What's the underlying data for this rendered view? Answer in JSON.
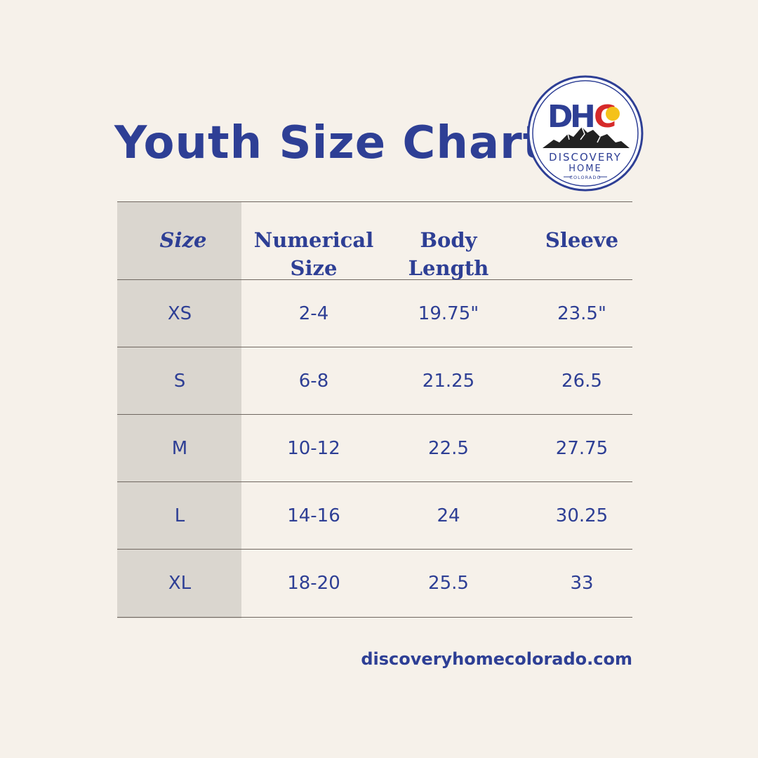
{
  "title": "Youth Size Chart",
  "logo": {
    "letters": [
      "D",
      "H",
      "C"
    ],
    "line1": "DISCOVERY",
    "line2": "HOME",
    "line3": "COLORADO",
    "colors": {
      "navy": "#2e3f95",
      "red": "#d62a2a",
      "gold": "#f4c21a",
      "mountain": "#222222"
    }
  },
  "table": {
    "headers": [
      {
        "lines": [
          "Size"
        ]
      },
      {
        "lines": [
          "Numerical",
          "Size"
        ]
      },
      {
        "lines": [
          "Body",
          "Length"
        ]
      },
      {
        "lines": [
          "Sleeve"
        ]
      }
    ],
    "rows": [
      [
        "XS",
        "2-4",
        "19.75\"",
        "23.5\""
      ],
      [
        "S",
        "6-8",
        "21.25",
        "26.5"
      ],
      [
        "M",
        "10-12",
        "22.5",
        "27.75"
      ],
      [
        "L",
        "14-16",
        "24",
        "30.25"
      ],
      [
        "XL",
        "18-20",
        "25.5",
        "33"
      ]
    ]
  },
  "website": "discoveryhomecolorado.com",
  "colors": {
    "background": "#f6f1ea",
    "first_column": "#dad6cf",
    "text": "#2e3f95",
    "rule": "#6f6760"
  }
}
